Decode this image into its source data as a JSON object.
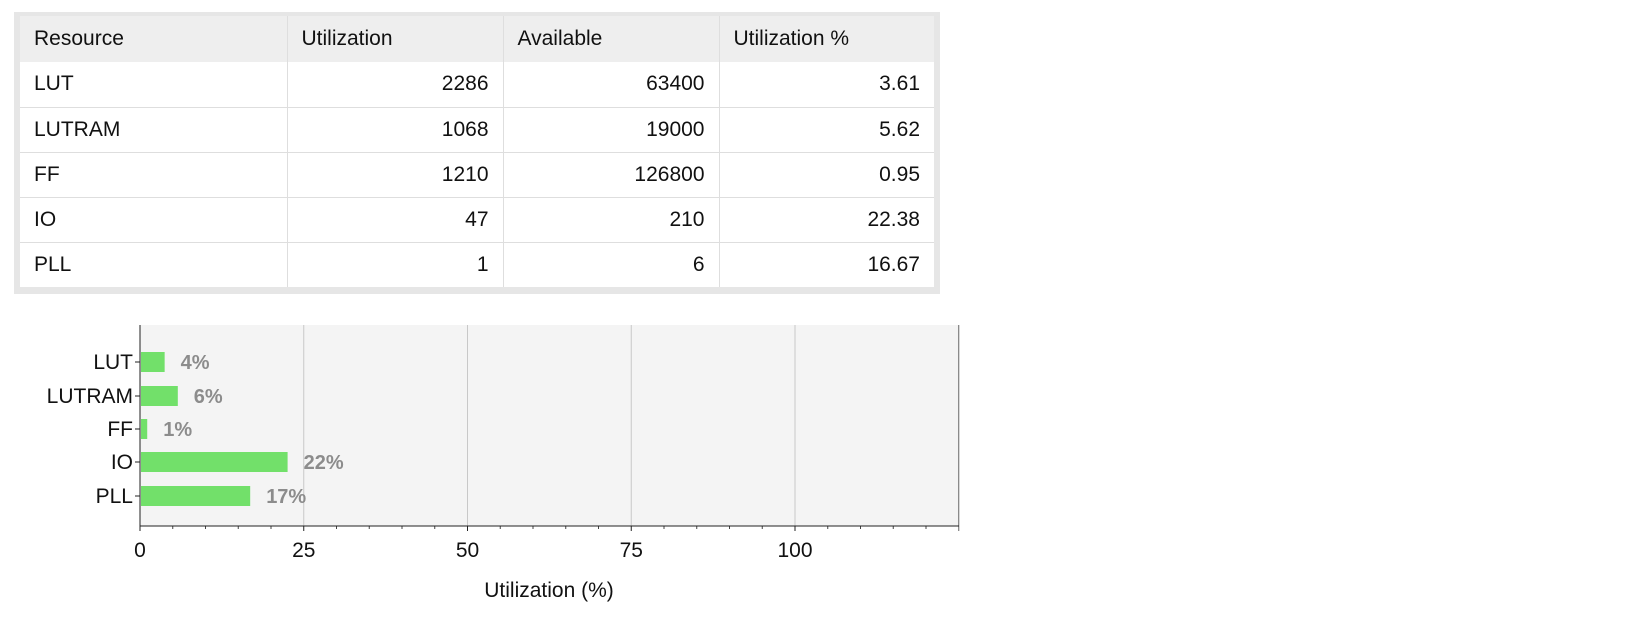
{
  "table": {
    "headers": [
      "Resource",
      "Utilization",
      "Available",
      "Utilization %"
    ],
    "rows": [
      [
        "LUT",
        "2286",
        "63400",
        "3.61"
      ],
      [
        "LUTRAM",
        "1068",
        "19000",
        "5.62"
      ],
      [
        "FF",
        "1210",
        "126800",
        "0.95"
      ],
      [
        "IO",
        "47",
        "210",
        "22.38"
      ],
      [
        "PLL",
        "1",
        "6",
        "16.67"
      ]
    ]
  },
  "chart_data": {
    "type": "bar",
    "orientation": "horizontal",
    "categories": [
      "LUT",
      "LUTRAM",
      "FF",
      "IO",
      "PLL"
    ],
    "values": [
      3.61,
      5.62,
      0.95,
      22.38,
      16.67
    ],
    "data_labels": [
      "4%",
      "6%",
      "1%",
      "22%",
      "17%"
    ],
    "xlabel": "Utilization (%)",
    "ylabel": "",
    "xlim": [
      0,
      125
    ],
    "xticks": [
      "0",
      "25",
      "50",
      "75",
      "100"
    ],
    "xtick_values": [
      0,
      25,
      50,
      75,
      100
    ],
    "grid": true,
    "colors": {
      "bar": "#72e06a",
      "plot_bg": "#f4f4f4",
      "grid": "#c8c8c8",
      "data_label": "#8c8c8c"
    }
  }
}
